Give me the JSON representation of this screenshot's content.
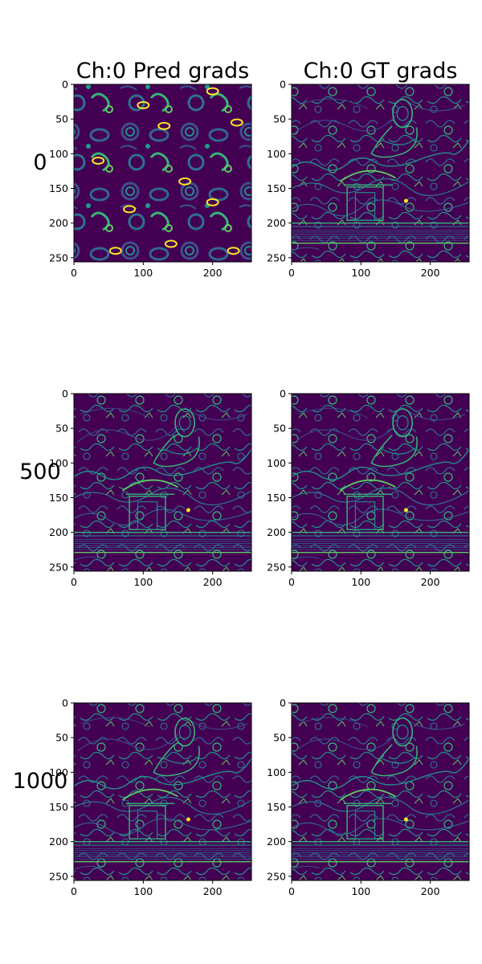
{
  "chart_data": {
    "type": "image-grid",
    "column_titles": [
      "Ch:0 Pred grads",
      "Ch:0 GT grads"
    ],
    "row_labels": [
      "0",
      "500",
      "1000"
    ],
    "xlim": [
      0,
      256
    ],
    "ylim": [
      256,
      0
    ],
    "xticks": [
      0,
      100,
      200
    ],
    "yticks": [
      0,
      50,
      100,
      150,
      200,
      250
    ],
    "colormap": "viridis",
    "colors": {
      "background": "#440154",
      "mid": "#31688e",
      "edge": "#35b779",
      "peak": "#fde725"
    },
    "panels": [
      {
        "row": "0",
        "column": "Ch:0 Pred grads",
        "content": "noise"
      },
      {
        "row": "0",
        "column": "Ch:0 GT grads",
        "content": "gradient-edges"
      },
      {
        "row": "500",
        "column": "Ch:0 Pred grads",
        "content": "gradient-edges"
      },
      {
        "row": "500",
        "column": "Ch:0 GT grads",
        "content": "gradient-edges"
      },
      {
        "row": "1000",
        "column": "Ch:0 Pred grads",
        "content": "gradient-edges"
      },
      {
        "row": "1000",
        "column": "Ch:0 GT grads",
        "content": "gradient-edges"
      }
    ]
  }
}
